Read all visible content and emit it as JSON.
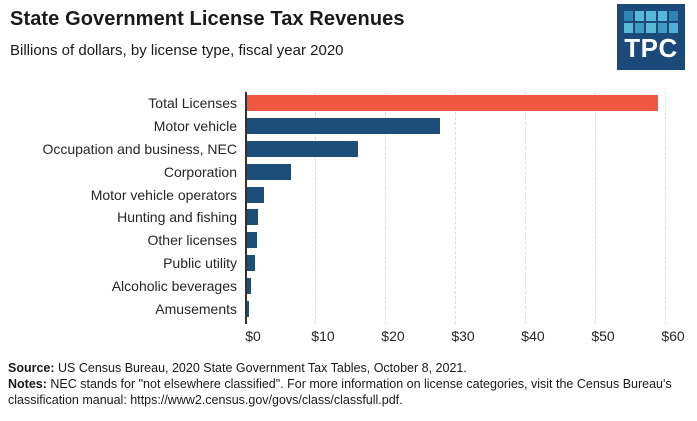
{
  "header": {
    "logo_text": "TPC",
    "logo_bg": "#1B4A7A",
    "logo_tiles": [
      "#2E86B0",
      "#58B8D8",
      "#58B8D8",
      "#58B8D8",
      "#2E86B0",
      "#58B8D8",
      "#3E9CC4",
      "#58B8D8",
      "#3E9CC4",
      "#4FAFD2"
    ]
  },
  "chart_data": {
    "type": "bar",
    "orientation": "horizontal",
    "title": "State Government License Tax Revenues",
    "subtitle": "Billions of dollars, by license type, fiscal year 2020",
    "categories": [
      "Total Licenses",
      "Motor vehicle",
      "Occupation and business, NEC",
      "Corporation",
      "Motor vehicle operators",
      "Hunting and fishing",
      "Other licenses",
      "Public utility",
      "Alcoholic beverages",
      "Amusements"
    ],
    "values": [
      59.0,
      27.9,
      16.2,
      6.5,
      2.7,
      1.9,
      1.7,
      1.4,
      0.8,
      0.6
    ],
    "units": "billions of dollars",
    "xlim": [
      0,
      60
    ],
    "x_ticks": [
      "$0",
      "$10",
      "$20",
      "$30",
      "$40",
      "$50",
      "$60"
    ],
    "x_tick_values": [
      0,
      10,
      20,
      30,
      40,
      50,
      60
    ],
    "grid": "vertical-dashed",
    "legend": "none",
    "highlight_index": 0,
    "highlight_color": "#EF5740",
    "bar_color": "#1D4E79"
  },
  "footer": {
    "source_label": "Source:",
    "source_text": "  US Census Bureau, 2020 State Government Tax Tables, October 8, 2021.",
    "notes_label": "Notes:",
    "notes_text": " NEC stands for \"not elsewhere classified\". For more information on license categories, visit the Census Bureau's classification manual: https://www2.census.gov/govs/class/classfull.pdf."
  }
}
